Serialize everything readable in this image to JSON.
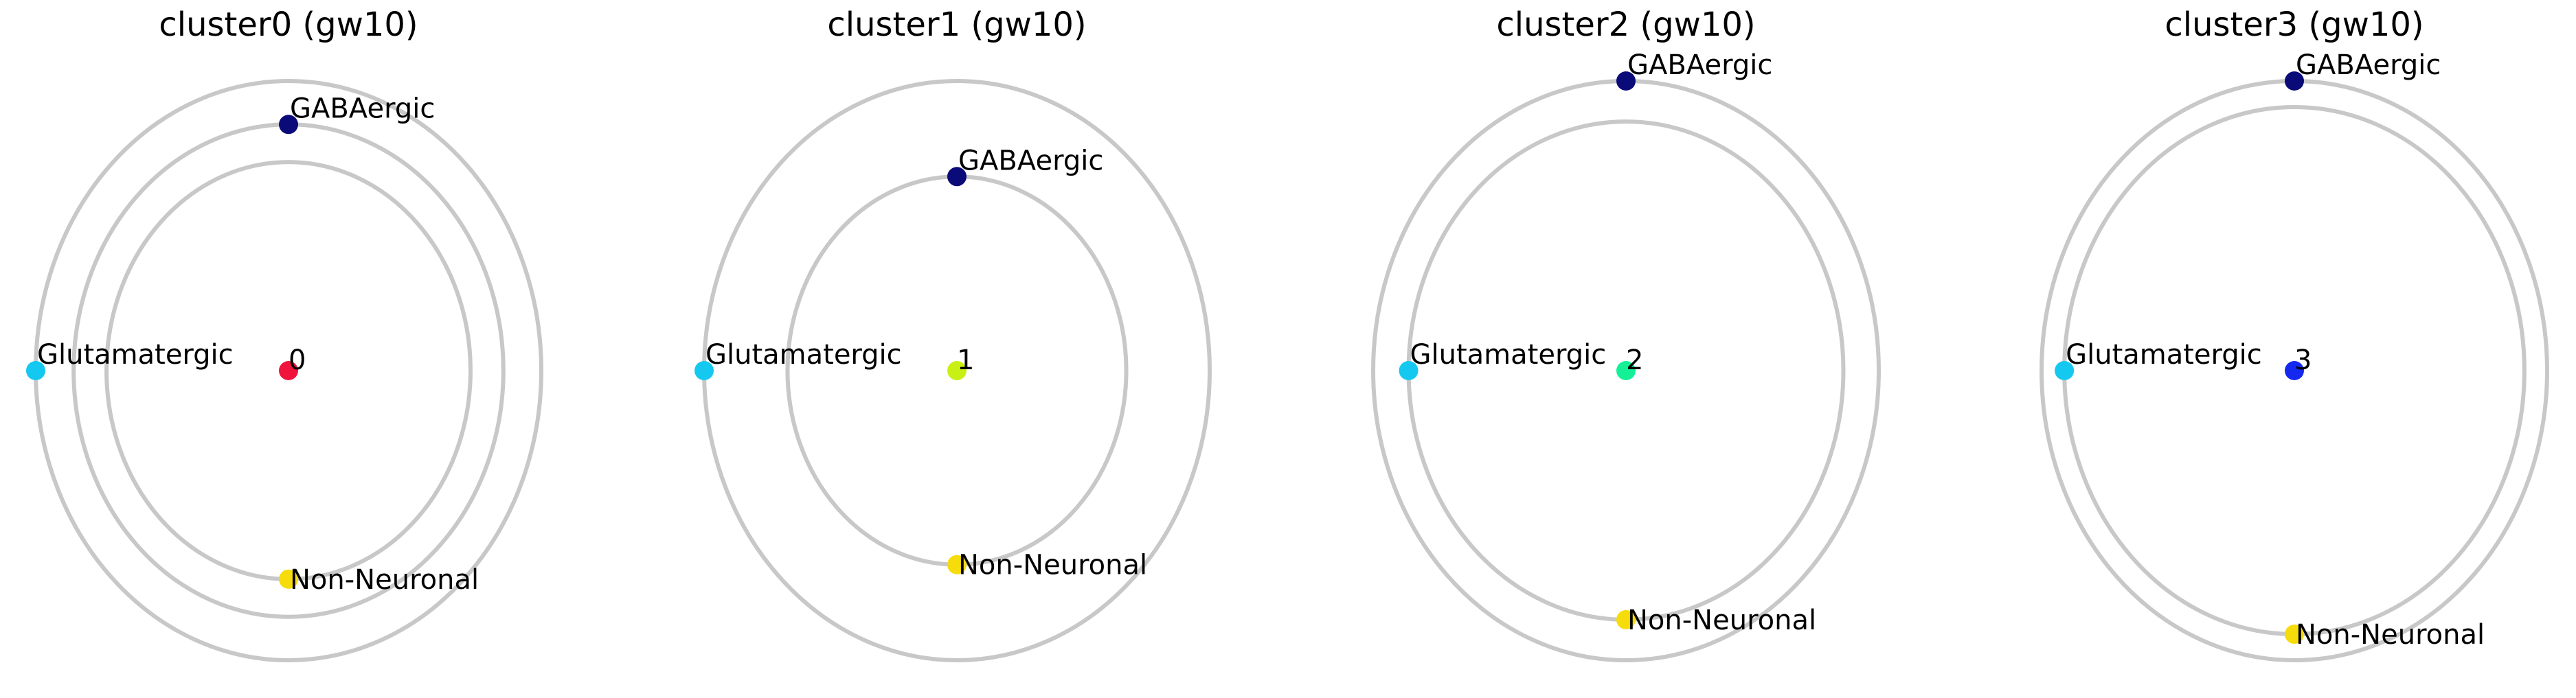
{
  "chart_data": [
    {
      "type": "scatter",
      "title": "cluster0 (gw10)",
      "center": {
        "label": "0",
        "color": "#f0143c"
      },
      "ring_radii": [
        0.72,
        0.85,
        1.0
      ],
      "nodes": [
        {
          "label": "GABAergic",
          "radius": 0.85,
          "angle_deg": 90,
          "color": "#0a0a78"
        },
        {
          "label": "Glutamatergic",
          "radius": 1.0,
          "angle_deg": 180,
          "color": "#14c8f0"
        },
        {
          "label": "Non-Neuronal",
          "radius": 0.72,
          "angle_deg": 270,
          "color": "#f5dc0a"
        }
      ]
    },
    {
      "type": "scatter",
      "title": "cluster1 (gw10)",
      "center": {
        "label": "1",
        "color": "#c8f014"
      },
      "ring_radii": [
        0.67,
        1.0
      ],
      "nodes": [
        {
          "label": "GABAergic",
          "radius": 0.67,
          "angle_deg": 90,
          "color": "#0a0a78"
        },
        {
          "label": "Glutamatergic",
          "radius": 1.0,
          "angle_deg": 180,
          "color": "#14c8f0"
        },
        {
          "label": "Non-Neuronal",
          "radius": 0.67,
          "angle_deg": 270,
          "color": "#f5dc0a"
        }
      ]
    },
    {
      "type": "scatter",
      "title": "cluster2 (gw10)",
      "center": {
        "label": "2",
        "color": "#14f096"
      },
      "ring_radii": [
        0.86,
        1.0
      ],
      "nodes": [
        {
          "label": "GABAergic",
          "radius": 1.0,
          "angle_deg": 90,
          "color": "#0a0a78"
        },
        {
          "label": "Glutamatergic",
          "radius": 0.86,
          "angle_deg": 180,
          "color": "#14c8f0"
        },
        {
          "label": "Non-Neuronal",
          "radius": 0.86,
          "angle_deg": 270,
          "color": "#f5dc0a"
        }
      ]
    },
    {
      "type": "scatter",
      "title": "cluster3 (gw10)",
      "center": {
        "label": "3",
        "color": "#1428f0"
      },
      "ring_radii": [
        0.91,
        1.0
      ],
      "nodes": [
        {
          "label": "GABAergic",
          "radius": 1.0,
          "angle_deg": 90,
          "color": "#0a0a78"
        },
        {
          "label": "Glutamatergic",
          "radius": 0.91,
          "angle_deg": 180,
          "color": "#14c8f0"
        },
        {
          "label": "Non-Neuronal",
          "radius": 0.91,
          "angle_deg": 270,
          "color": "#f5dc0a"
        }
      ]
    }
  ]
}
